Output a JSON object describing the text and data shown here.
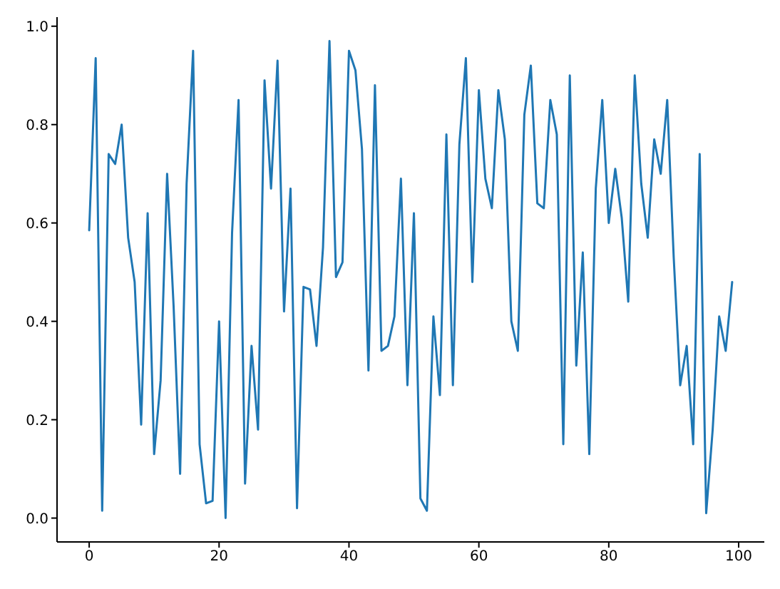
{
  "chart_data": {
    "type": "line",
    "x": [
      0,
      1,
      2,
      3,
      4,
      5,
      6,
      7,
      8,
      9,
      10,
      11,
      12,
      13,
      14,
      15,
      16,
      17,
      18,
      19,
      20,
      21,
      22,
      23,
      24,
      25,
      26,
      27,
      28,
      29,
      30,
      31,
      32,
      33,
      34,
      35,
      36,
      37,
      38,
      39,
      40,
      41,
      42,
      43,
      44,
      45,
      46,
      47,
      48,
      49,
      50,
      51,
      52,
      53,
      54,
      55,
      56,
      57,
      58,
      59,
      60,
      61,
      62,
      63,
      64,
      65,
      66,
      67,
      68,
      69,
      70,
      71,
      72,
      73,
      74,
      75,
      76,
      77,
      78,
      79,
      80,
      81,
      82,
      83,
      84,
      85,
      86,
      87,
      88,
      89,
      90,
      91,
      92,
      93,
      94,
      95,
      96,
      97,
      98,
      99
    ],
    "series": [
      {
        "color": "#1f77b4",
        "values": [
          0.585,
          0.935,
          0.015,
          0.74,
          0.72,
          0.8,
          0.57,
          0.48,
          0.19,
          0.62,
          0.13,
          0.28,
          0.7,
          0.43,
          0.09,
          0.68,
          0.95,
          0.15,
          0.03,
          0.035,
          0.4,
          0.0,
          0.58,
          0.85,
          0.07,
          0.35,
          0.18,
          0.89,
          0.67,
          0.93,
          0.42,
          0.67,
          0.02,
          0.47,
          0.465,
          0.35,
          0.55,
          0.97,
          0.49,
          0.52,
          0.95,
          0.91,
          0.75,
          0.3,
          0.88,
          0.34,
          0.35,
          0.41,
          0.69,
          0.27,
          0.62,
          0.04,
          0.015,
          0.41,
          0.25,
          0.78,
          0.27,
          0.76,
          0.935,
          0.48,
          0.87,
          0.69,
          0.63,
          0.87,
          0.77,
          0.4,
          0.34,
          0.82,
          0.92,
          0.64,
          0.63,
          0.85,
          0.78,
          0.15,
          0.9,
          0.31,
          0.54,
          0.13,
          0.67,
          0.85,
          0.6,
          0.71,
          0.61,
          0.44,
          0.9,
          0.68,
          0.57,
          0.77,
          0.7,
          0.85,
          0.53,
          0.27,
          0.35,
          0.15,
          0.74,
          0.01,
          0.18,
          0.41,
          0.34,
          0.48
        ]
      }
    ],
    "xlim": [
      -4.95,
      103.95
    ],
    "ylim": [
      -0.0485,
      1.0185
    ],
    "xticks": [
      0,
      20,
      40,
      60,
      80,
      100
    ],
    "yticks": [
      {
        "value": 0,
        "label": "0.0"
      },
      {
        "value": 0.2,
        "label": "0.2"
      },
      {
        "value": 0.4,
        "label": "0.4"
      },
      {
        "value": 0.6,
        "label": "0.6"
      },
      {
        "value": 0.8,
        "label": "0.8"
      },
      {
        "value": 1,
        "label": "1.0"
      }
    ],
    "grid": false,
    "legend": false,
    "marker": "none",
    "line_style": "solid"
  }
}
